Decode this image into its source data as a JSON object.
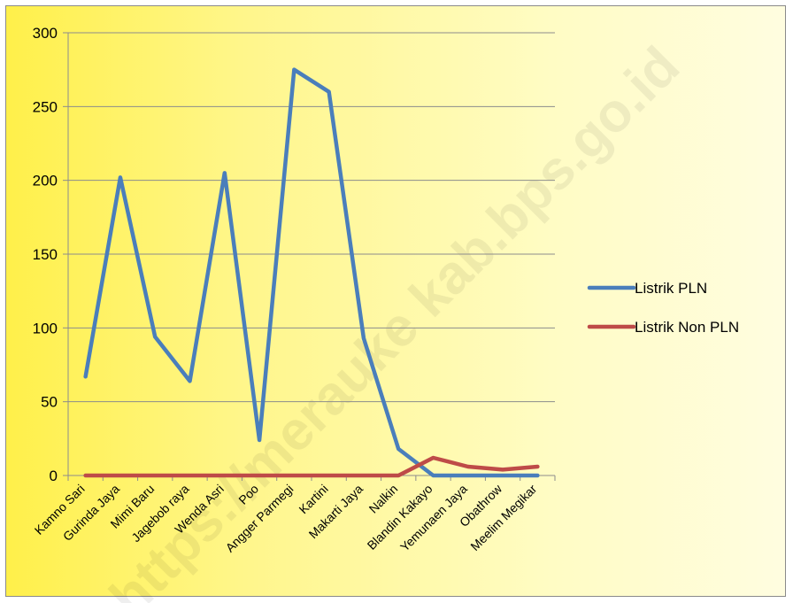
{
  "chart_data": {
    "type": "line",
    "categories": [
      "Kamno Sari",
      "Gurinda Jaya",
      "Mimi Baru",
      "Jagebob raya",
      "Wenda Asri",
      "Poo",
      "Angger Parmegi",
      "Kartini",
      "Makarti Jaya",
      "Nalkin",
      "Blandin Kakayo",
      "Yemunaen Jaya",
      "Obathrow",
      "Meelim Megikar"
    ],
    "series": [
      {
        "name": "Listrik PLN",
        "color": "#4a7ebb",
        "values": [
          67,
          202,
          94,
          64,
          205,
          24,
          275,
          260,
          93,
          18,
          0,
          0,
          0,
          0
        ]
      },
      {
        "name": "Listrik Non PLN",
        "color": "#be4b48",
        "values": [
          0,
          0,
          0,
          0,
          0,
          0,
          0,
          0,
          0,
          0,
          12,
          6,
          4,
          6
        ]
      }
    ],
    "ylim": [
      0,
      300
    ],
    "yticks": [
      0,
      50,
      100,
      150,
      200,
      250,
      300
    ],
    "grid": true,
    "legend": "right",
    "watermark": "https://merauke kab.bps.go.id"
  }
}
